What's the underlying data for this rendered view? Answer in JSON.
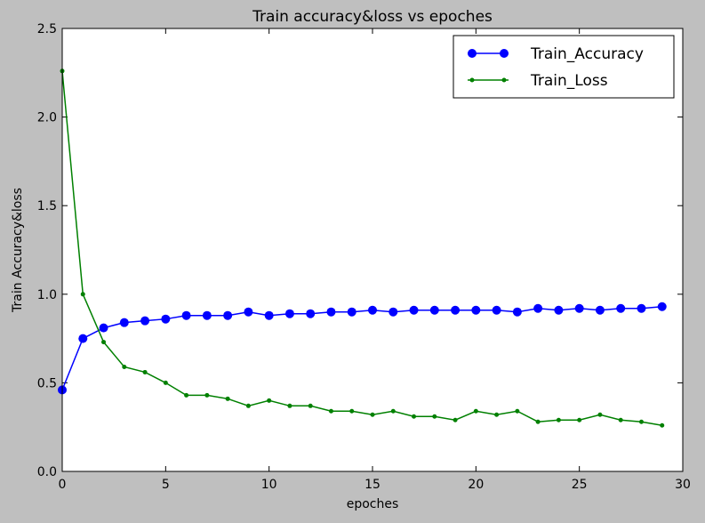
{
  "chart_data": {
    "type": "line",
    "title": "Train accuracy&loss vs epoches",
    "xlabel": "epoches",
    "ylabel": "Train Accuracy&loss",
    "xlim": [
      0,
      30
    ],
    "ylim": [
      0.0,
      2.5
    ],
    "xticks": [
      "0",
      "5",
      "10",
      "15",
      "20",
      "25",
      "30"
    ],
    "yticks": [
      "0.0",
      "0.5",
      "1.0",
      "1.5",
      "2.0",
      "2.5"
    ],
    "grid": false,
    "legend_position": "top-right",
    "x": [
      0,
      1,
      2,
      3,
      4,
      5,
      6,
      7,
      8,
      9,
      10,
      11,
      12,
      13,
      14,
      15,
      16,
      17,
      18,
      19,
      20,
      21,
      22,
      23,
      24,
      25,
      26,
      27,
      28,
      29
    ],
    "series": [
      {
        "name": "Train_Accuracy",
        "color": "#0000ff",
        "marker": "circle-large",
        "values": [
          0.46,
          0.75,
          0.81,
          0.84,
          0.85,
          0.86,
          0.88,
          0.88,
          0.88,
          0.9,
          0.88,
          0.89,
          0.89,
          0.9,
          0.9,
          0.91,
          0.9,
          0.91,
          0.91,
          0.91,
          0.91,
          0.91,
          0.9,
          0.92,
          0.91,
          0.92,
          0.91,
          0.92,
          0.92,
          0.93
        ]
      },
      {
        "name": "Train_Loss",
        "color": "#008000",
        "marker": "circle-small",
        "values": [
          2.26,
          1.0,
          0.73,
          0.59,
          0.56,
          0.5,
          0.43,
          0.43,
          0.41,
          0.37,
          0.4,
          0.37,
          0.37,
          0.34,
          0.34,
          0.32,
          0.34,
          0.31,
          0.31,
          0.29,
          0.34,
          0.32,
          0.34,
          0.28,
          0.29,
          0.29,
          0.32,
          0.29,
          0.28,
          0.26
        ]
      }
    ]
  }
}
